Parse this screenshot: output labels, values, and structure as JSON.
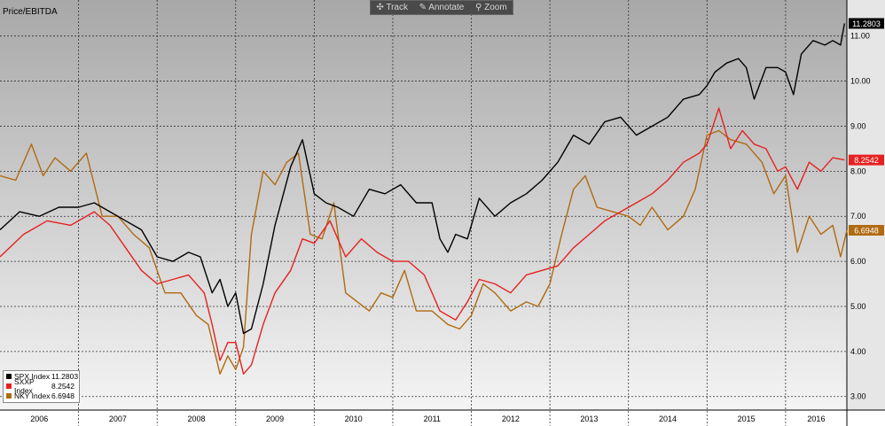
{
  "toolbar": {
    "track": "Track",
    "annotate": "Annotate",
    "zoom": "Zoom"
  },
  "chart_data": {
    "type": "line",
    "title": "Price/EBITDA",
    "xlabel": "",
    "ylabel": "",
    "x_range": [
      2006.0,
      2016.78
    ],
    "ylim": [
      2.7,
      11.8
    ],
    "y_ticks": [
      "3.00",
      "4.00",
      "5.00",
      "6.00",
      "7.00",
      "8.00",
      "9.00",
      "10.00",
      "11.00"
    ],
    "y_tick_values": [
      3,
      4,
      5,
      6,
      7,
      8,
      9,
      10,
      11
    ],
    "x_ticks": [
      "2006",
      "2007",
      "2008",
      "2009",
      "2010",
      "2011",
      "2012",
      "2013",
      "2014",
      "2015",
      "2016"
    ],
    "grid": true,
    "legend_position": "bottom-left",
    "series": [
      {
        "name": "SPX Index",
        "last": "11.2803",
        "color": "#000000",
        "x": [
          2006.0,
          2006.25,
          2006.5,
          2006.75,
          2007.0,
          2007.2,
          2007.4,
          2007.6,
          2007.8,
          2008.0,
          2008.2,
          2008.4,
          2008.55,
          2008.7,
          2008.8,
          2008.9,
          2009.0,
          2009.1,
          2009.2,
          2009.35,
          2009.5,
          2009.7,
          2009.85,
          2010.0,
          2010.15,
          2010.3,
          2010.5,
          2010.7,
          2010.9,
          2011.1,
          2011.3,
          2011.5,
          2011.6,
          2011.7,
          2011.8,
          2011.95,
          2012.1,
          2012.3,
          2012.5,
          2012.7,
          2012.9,
          2013.1,
          2013.3,
          2013.5,
          2013.7,
          2013.9,
          2014.1,
          2014.3,
          2014.5,
          2014.7,
          2014.9,
          2015.0,
          2015.1,
          2015.25,
          2015.4,
          2015.5,
          2015.6,
          2015.75,
          2015.9,
          2016.0,
          2016.1,
          2016.2,
          2016.35,
          2016.5,
          2016.6,
          2016.7,
          2016.75
        ],
        "y": [
          6.7,
          7.1,
          7.0,
          7.2,
          7.2,
          7.3,
          7.1,
          6.9,
          6.7,
          6.1,
          6.0,
          6.2,
          6.1,
          5.3,
          5.6,
          5.0,
          5.3,
          4.4,
          4.5,
          5.5,
          6.8,
          8.1,
          8.7,
          7.5,
          7.3,
          7.2,
          7.0,
          7.6,
          7.5,
          7.7,
          7.3,
          7.3,
          6.5,
          6.2,
          6.6,
          6.5,
          7.4,
          7.0,
          7.3,
          7.5,
          7.8,
          8.2,
          8.8,
          8.6,
          9.1,
          9.2,
          8.8,
          9.0,
          9.2,
          9.6,
          9.7,
          9.9,
          10.2,
          10.4,
          10.5,
          10.3,
          9.6,
          10.3,
          10.3,
          10.2,
          9.7,
          10.6,
          10.9,
          10.8,
          10.9,
          10.8,
          11.28
        ]
      },
      {
        "name": "SXXP Index",
        "last": "8.2542",
        "color": "#e82020",
        "x": [
          2006.0,
          2006.3,
          2006.6,
          2006.9,
          2007.2,
          2007.4,
          2007.6,
          2007.8,
          2008.0,
          2008.2,
          2008.4,
          2008.6,
          2008.7,
          2008.8,
          2008.9,
          2009.0,
          2009.1,
          2009.2,
          2009.35,
          2009.5,
          2009.7,
          2009.85,
          2010.0,
          2010.2,
          2010.4,
          2010.6,
          2010.8,
          2011.0,
          2011.2,
          2011.4,
          2011.6,
          2011.8,
          2011.95,
          2012.1,
          2012.3,
          2012.5,
          2012.7,
          2012.9,
          2013.1,
          2013.3,
          2013.5,
          2013.7,
          2013.9,
          2014.1,
          2014.3,
          2014.5,
          2014.7,
          2014.9,
          2015.0,
          2015.15,
          2015.3,
          2015.45,
          2015.6,
          2015.75,
          2015.9,
          2016.0,
          2016.15,
          2016.3,
          2016.45,
          2016.6,
          2016.75
        ],
        "y": [
          6.1,
          6.6,
          6.9,
          6.8,
          7.1,
          6.8,
          6.3,
          5.8,
          5.5,
          5.6,
          5.7,
          5.3,
          4.6,
          3.8,
          4.2,
          4.2,
          3.5,
          3.7,
          4.6,
          5.3,
          5.8,
          6.5,
          6.4,
          6.9,
          6.1,
          6.5,
          6.2,
          6.0,
          6.0,
          5.7,
          4.9,
          4.7,
          5.1,
          5.6,
          5.5,
          5.3,
          5.7,
          5.8,
          5.9,
          6.3,
          6.6,
          6.9,
          7.1,
          7.3,
          7.5,
          7.8,
          8.2,
          8.4,
          8.6,
          9.4,
          8.5,
          8.9,
          8.6,
          8.5,
          8.0,
          8.1,
          7.6,
          8.2,
          8.0,
          8.3,
          8.25
        ]
      },
      {
        "name": "NKY Index",
        "last": "6.6948",
        "color": "#b06a10",
        "x": [
          2006.0,
          2006.2,
          2006.4,
          2006.55,
          2006.7,
          2006.9,
          2007.1,
          2007.3,
          2007.5,
          2007.7,
          2007.9,
          2008.1,
          2008.3,
          2008.5,
          2008.65,
          2008.8,
          2008.9,
          2009.0,
          2009.1,
          2009.2,
          2009.35,
          2009.5,
          2009.65,
          2009.8,
          2009.95,
          2010.1,
          2010.25,
          2010.4,
          2010.55,
          2010.7,
          2010.85,
          2011.0,
          2011.15,
          2011.3,
          2011.5,
          2011.7,
          2011.85,
          2012.0,
          2012.15,
          2012.3,
          2012.5,
          2012.7,
          2012.85,
          2013.0,
          2013.15,
          2013.3,
          2013.45,
          2013.6,
          2013.8,
          2014.0,
          2014.15,
          2014.3,
          2014.5,
          2014.7,
          2014.85,
          2015.0,
          2015.15,
          2015.3,
          2015.5,
          2015.7,
          2015.85,
          2016.0,
          2016.15,
          2016.3,
          2016.45,
          2016.6,
          2016.7,
          2016.78
        ],
        "y": [
          7.9,
          7.8,
          8.6,
          7.9,
          8.3,
          8.0,
          8.4,
          7.0,
          7.0,
          6.6,
          6.3,
          5.3,
          5.3,
          4.8,
          4.6,
          3.5,
          3.9,
          3.6,
          4.1,
          6.6,
          8.0,
          7.7,
          8.2,
          8.4,
          6.6,
          6.5,
          7.3,
          5.3,
          5.1,
          4.9,
          5.3,
          5.2,
          5.8,
          4.9,
          4.9,
          4.6,
          4.5,
          4.8,
          5.5,
          5.3,
          4.9,
          5.1,
          5.0,
          5.5,
          6.6,
          7.6,
          7.9,
          7.2,
          7.1,
          7.0,
          6.8,
          7.2,
          6.7,
          7.0,
          7.6,
          8.8,
          8.9,
          8.7,
          8.6,
          8.2,
          7.5,
          7.9,
          6.2,
          7.0,
          6.6,
          6.8,
          6.1,
          6.69
        ]
      }
    ]
  }
}
